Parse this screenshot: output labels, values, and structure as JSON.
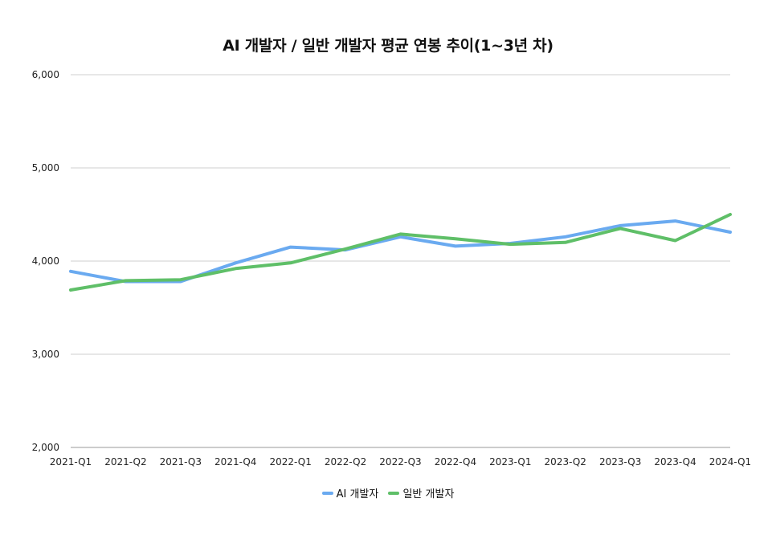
{
  "chart_data": {
    "type": "line",
    "title": "AI 개발자 / 일반 개발자 평균 연봉 추이(1~3년 차)",
    "xlabel": "",
    "ylabel": "",
    "ylim": [
      2000,
      6000
    ],
    "yticks": [
      2000,
      3000,
      4000,
      5000,
      6000
    ],
    "ytick_labels": [
      "2,000",
      "3,000",
      "4,000",
      "5,000",
      "6,000"
    ],
    "grid": true,
    "legend_position": "bottom",
    "categories": [
      "2021-Q1",
      "2021-Q2",
      "2021-Q3",
      "2021-Q4",
      "2022-Q1",
      "2022-Q2",
      "2022-Q3",
      "2022-Q4",
      "2023-Q1",
      "2023-Q2",
      "2023-Q3",
      "2023-Q4",
      "2024-Q1"
    ],
    "series": [
      {
        "name": "AI 개발자",
        "color": "#6aaaf0",
        "values": [
          3890,
          3780,
          3780,
          3980,
          4150,
          4120,
          4260,
          4160,
          4190,
          4260,
          4380,
          4430,
          4310
        ]
      },
      {
        "name": "일반 개발자",
        "color": "#5fbf68",
        "values": [
          3690,
          3790,
          3800,
          3920,
          3980,
          4130,
          4290,
          4240,
          4180,
          4200,
          4350,
          4220,
          4500
        ]
      }
    ]
  }
}
